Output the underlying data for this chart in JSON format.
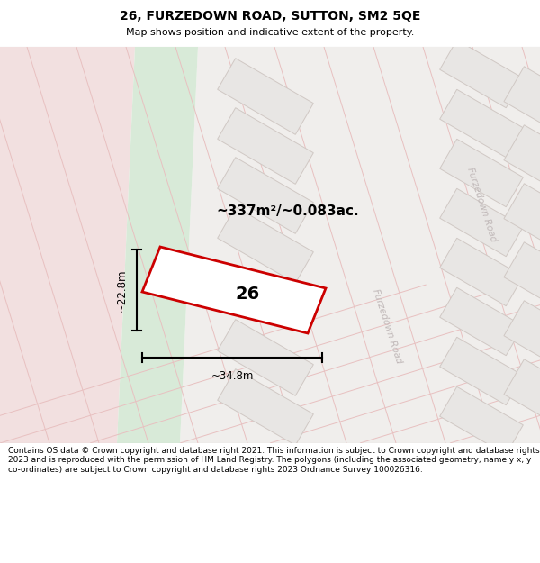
{
  "title": "26, FURZEDOWN ROAD, SUTTON, SM2 5QE",
  "subtitle": "Map shows position and indicative extent of the property.",
  "footer": "Contains OS data © Crown copyright and database right 2021. This information is subject to Crown copyright and database rights 2023 and is reproduced with the permission of HM Land Registry. The polygons (including the associated geometry, namely x, y co-ordinates) are subject to Crown copyright and database rights 2023 Ordnance Survey 100026316.",
  "area_label": "~337m²/~0.083ac.",
  "width_label": "~34.8m",
  "height_label": "~22.8m",
  "number_label": "26",
  "bg_map": "#f0eeec",
  "pink_area": "#f2e0e0",
  "green_area": "#d8ead8",
  "plot_fill": "#ffffff",
  "plot_edge": "#cc0000",
  "block_fill": "#e8e6e4",
  "block_edge": "#d0c8c4",
  "road_line": "#e8c0c0",
  "road_label_color": "#c0b8b8",
  "dim_color": "#222222",
  "white": "#ffffff"
}
